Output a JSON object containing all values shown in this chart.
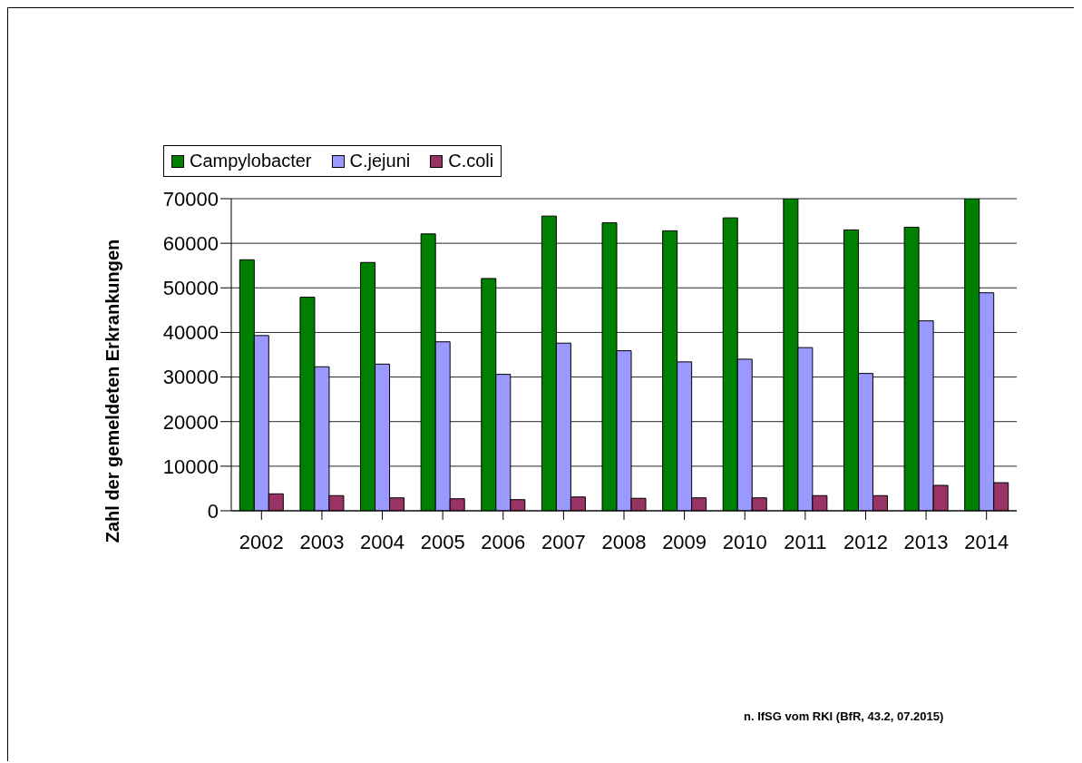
{
  "chart_data": {
    "type": "bar",
    "ylabel": "Zahl der gemeldeten Erkrankungen",
    "categories": [
      "2002",
      "2003",
      "2004",
      "2005",
      "2006",
      "2007",
      "2008",
      "2009",
      "2010",
      "2011",
      "2012",
      "2013",
      "2014"
    ],
    "series": [
      {
        "name": "Campylobacter",
        "color": "#008000",
        "values": [
          56300,
          47900,
          55700,
          62100,
          52100,
          66100,
          64600,
          62800,
          65700,
          70000,
          63000,
          63600,
          70000
        ]
      },
      {
        "name": "C.jejuni",
        "color": "#9999ff",
        "values": [
          39300,
          32300,
          32900,
          37900,
          30600,
          37600,
          35900,
          33400,
          34000,
          36600,
          30800,
          42600,
          48900
        ]
      },
      {
        "name": "C.coli",
        "color": "#993366",
        "values": [
          3800,
          3400,
          2900,
          2700,
          2500,
          3100,
          2800,
          2900,
          2900,
          3400,
          3400,
          5700,
          6300
        ]
      }
    ],
    "ylim": [
      0,
      70000
    ],
    "yticks": [
      0,
      10000,
      20000,
      30000,
      40000,
      50000,
      60000,
      70000
    ],
    "grid": "y",
    "legend": "top left",
    "annotations": [
      "n. IfSG vom RKI (BfR, 43.2, 07.2015)"
    ]
  }
}
